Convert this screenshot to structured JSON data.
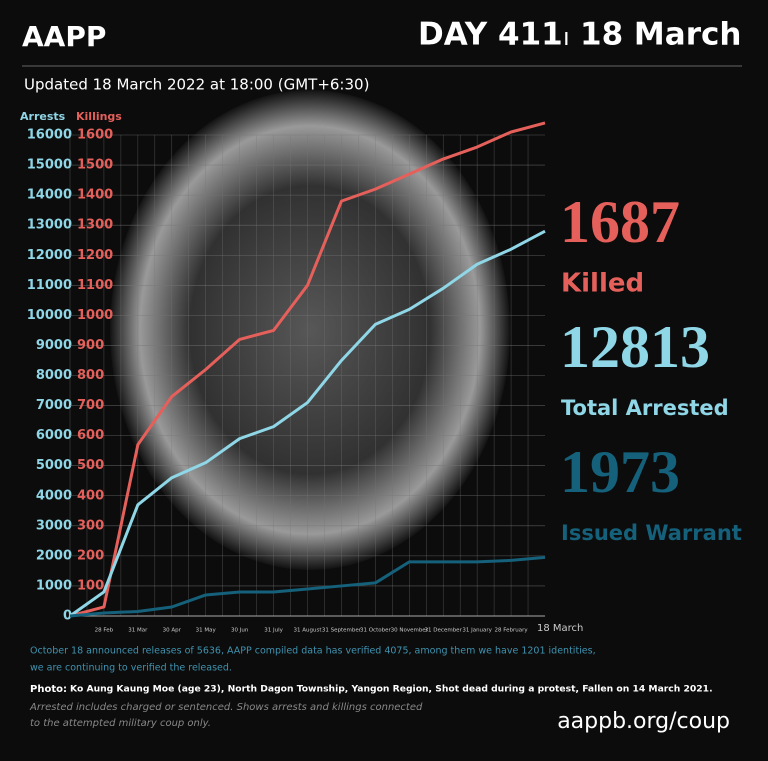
{
  "header": {
    "brand": "AAPP",
    "day": "DAY 411",
    "separator": "ı",
    "date": "18 March",
    "updated": "Updated 18 March 2022 at 18:00 (GMT+6:30)"
  },
  "chart_data": {
    "type": "line",
    "ylabel": "Arrests",
    "y2label": "Killings",
    "categories": [
      null,
      "28 Feb",
      "31 Mar",
      "30 Apr",
      "31 May",
      "30 Jun",
      "31 July",
      "31 August",
      "31 September",
      "31 October",
      "30 November",
      "31 December",
      "31 January",
      "28 February",
      "18 March"
    ],
    "series": [
      {
        "name": "Killed",
        "total": 1687,
        "color": "#e5605b",
        "axis": "y2",
        "values": [
          0,
          30,
          570,
          730,
          820,
          920,
          950,
          1100,
          1380,
          1420,
          1470,
          1520,
          1560,
          1610,
          1640
        ]
      },
      {
        "name": "Total Arrested",
        "total": 12813,
        "color": "#8fd6e6",
        "values": [
          0,
          800,
          3700,
          4600,
          5100,
          5900,
          6300,
          7100,
          8500,
          9700,
          10200,
          10900,
          11700,
          12200,
          12800
        ]
      },
      {
        "name": "Issued Warrant",
        "total": 1973,
        "color": "#15607a",
        "values": [
          0,
          100,
          150,
          300,
          700,
          800,
          800,
          900,
          1000,
          1100,
          1800,
          1800,
          1800,
          1850,
          1950
        ]
      }
    ],
    "ylim": [
      0,
      16000
    ],
    "yticks": [
      0,
      1000,
      2000,
      3000,
      4000,
      5000,
      6000,
      7000,
      8000,
      9000,
      10000,
      11000,
      12000,
      13000,
      14000,
      15000,
      16000
    ],
    "y2lim": [
      0,
      1600
    ],
    "y2ticks": [
      100,
      200,
      300,
      400,
      500,
      600,
      700,
      800,
      900,
      1000,
      1100,
      1200,
      1300,
      1400,
      1500,
      1600
    ],
    "grid": true
  },
  "notes": {
    "release": [
      "October 18 announced releases of 5636, AAPP compiled data has verified 4075, among them we have 1201 identities,",
      "we are continuing to verified the released."
    ],
    "photo_prefix": "Photo:",
    "photo": "Ko Aung Kaung Moe (age 23), North Dagon Township, Yangon Region, Shot dead during a protest, Fallen on 14 March 2021.",
    "footnote": [
      "Arrested includes charged or sentenced. Shows arrests and killings connected",
      "to the attempted military coup only."
    ],
    "url": "aappb.org/coup"
  }
}
